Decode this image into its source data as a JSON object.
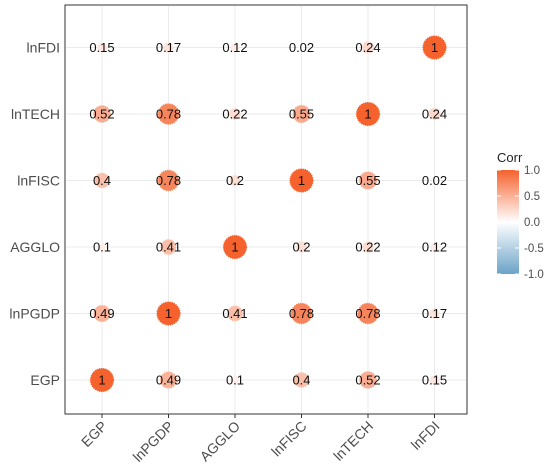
{
  "chart_data": {
    "type": "heatmap",
    "variables": [
      "EGP",
      "lnPGDP",
      "AGGLO",
      "lnFISC",
      "lnTECH",
      "lnFDI"
    ],
    "matrix": [
      [
        1,
        0.49,
        0.1,
        0.4,
        0.52,
        0.15
      ],
      [
        0.49,
        1,
        0.41,
        0.78,
        0.78,
        0.17
      ],
      [
        0.1,
        0.41,
        1,
        0.2,
        0.22,
        0.12
      ],
      [
        0.4,
        0.78,
        0.2,
        1,
        0.55,
        0.02
      ],
      [
        0.52,
        0.78,
        0.22,
        0.55,
        1,
        0.24
      ],
      [
        0.15,
        0.17,
        0.12,
        0.02,
        0.24,
        1
      ]
    ],
    "labels": [
      [
        "1",
        "0.49",
        "0.1",
        "0.4",
        "0.52",
        "0.15"
      ],
      [
        "0.49",
        "1",
        "0.41",
        "0.78",
        "0.78",
        "0.17"
      ],
      [
        "0.1",
        "0.41",
        "1",
        "0.2",
        "0.22",
        "0.12"
      ],
      [
        "0.4",
        "0.78",
        "0.2",
        "1",
        "0.55",
        "0.02"
      ],
      [
        "0.52",
        "0.78",
        "0.22",
        "0.55",
        "1",
        "0.24"
      ],
      [
        "0.15",
        "0.17",
        "0.12",
        "0.02",
        "0.24",
        "1"
      ]
    ],
    "marker": "circle sized and colored by correlation",
    "legend": {
      "title": "Corr",
      "range": [
        -1,
        1
      ],
      "ticks": [
        "1.0",
        "0.5",
        "0.0",
        "-0.5",
        "-1.0"
      ],
      "tick_values": [
        1,
        0.5,
        0,
        -0.5,
        -1
      ],
      "placement": "right"
    },
    "grid": true,
    "colors": {
      "high": "#f5622d",
      "mid": "#ffffff",
      "low": "#6aa3c8"
    }
  }
}
